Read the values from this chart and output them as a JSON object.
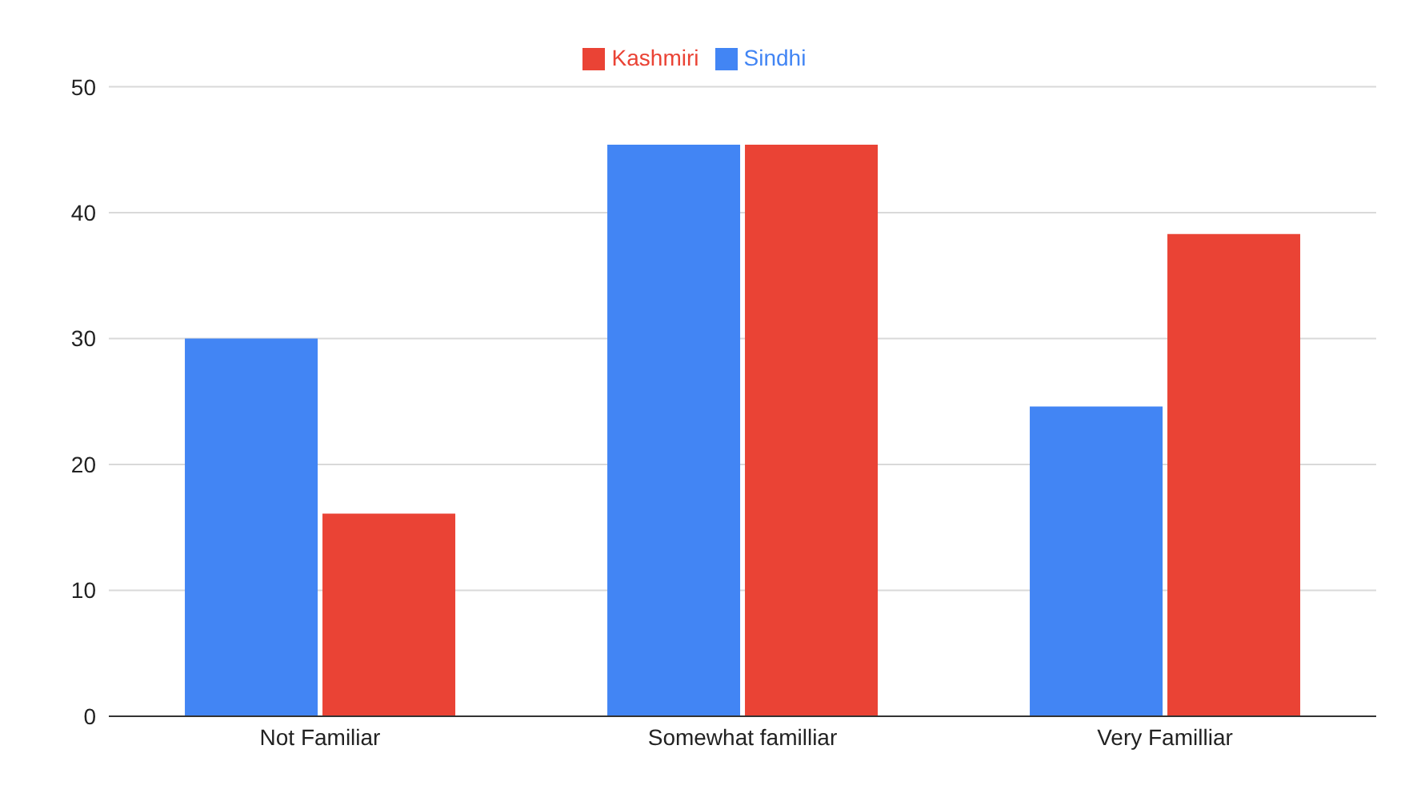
{
  "chart_data": {
    "type": "bar",
    "categories": [
      "Not Familiar",
      "Somewhat familliar",
      "Very Familliar"
    ],
    "series": [
      {
        "name": "Sindhi",
        "color": "#4285f4",
        "values": [
          30,
          45.4,
          24.6
        ]
      },
      {
        "name": "Kashmiri",
        "color": "#ea4335",
        "values": [
          16.1,
          45.4,
          38.3
        ]
      }
    ],
    "ylim": [
      0,
      50
    ],
    "yticks": [
      0,
      10,
      20,
      30,
      40,
      50
    ],
    "grid": "y",
    "legend": "top"
  }
}
